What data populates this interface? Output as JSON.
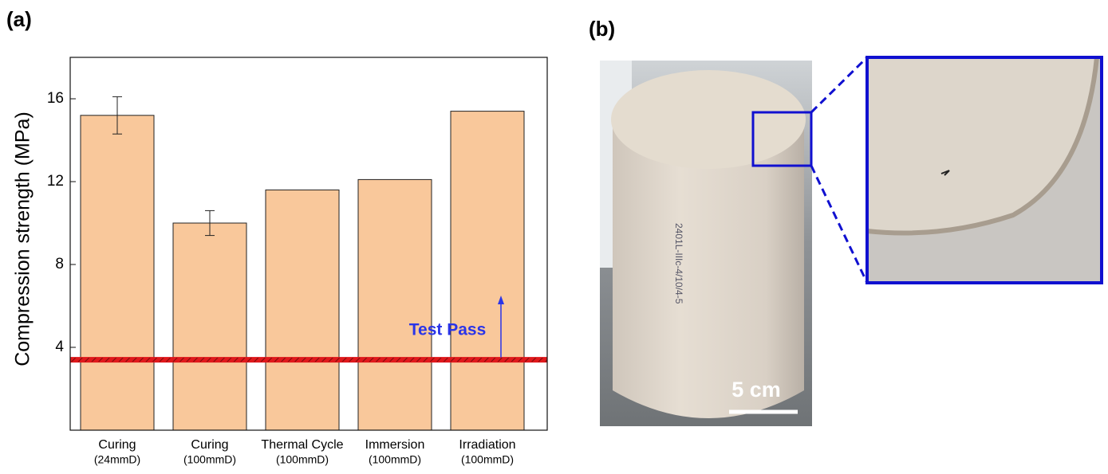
{
  "chart_data": {
    "type": "bar",
    "ylabel": "Compression strength (MPa)",
    "categories": [
      "Curing",
      "Curing",
      "Thermal Cycle",
      "Immersion",
      "Irradiation"
    ],
    "sublabels": [
      "(24mmD)",
      "(100mmD)",
      "(100mmD)",
      "(100mmD)",
      "(100mmD)"
    ],
    "values": [
      15.2,
      10.0,
      11.6,
      12.1,
      15.4
    ],
    "errors": [
      0.9,
      0.6,
      null,
      null,
      null
    ],
    "color": "#f9c89b",
    "ylim": [
      0,
      18
    ],
    "yticks": [
      4,
      8,
      12,
      16
    ],
    "threshold": 3.4,
    "threshold_color": "#e0191c",
    "annotation": "Test Pass",
    "annotation_color": "#2b35e8"
  },
  "panel_labels": [
    "(a)",
    "(b)"
  ],
  "scale_bar": "5 cm"
}
